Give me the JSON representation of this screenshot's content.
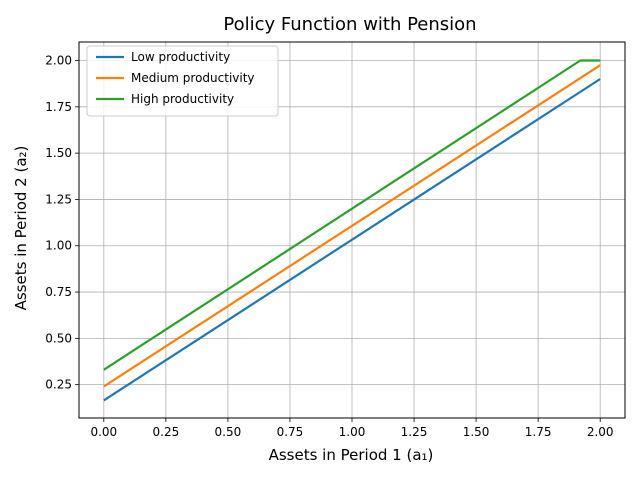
{
  "chart_data": {
    "type": "line",
    "title": "Policy Function with Pension",
    "xlabel": "Assets in Period 1 (a₁)",
    "ylabel": "Assets in Period 2 (a₂)",
    "xlim": [
      -0.1,
      2.1
    ],
    "ylim": [
      0.07,
      2.1
    ],
    "xticks": [
      0.0,
      0.25,
      0.5,
      0.75,
      1.0,
      1.25,
      1.5,
      1.75,
      2.0
    ],
    "xtick_labels": [
      "0.00",
      "0.25",
      "0.50",
      "0.75",
      "1.00",
      "1.25",
      "1.50",
      "1.75",
      "2.00"
    ],
    "yticks": [
      0.25,
      0.5,
      0.75,
      1.0,
      1.25,
      1.5,
      1.75,
      2.0
    ],
    "ytick_labels": [
      "0.25",
      "0.50",
      "0.75",
      "1.00",
      "1.25",
      "1.50",
      "1.75",
      "2.00"
    ],
    "grid": true,
    "legend_position": "top-left",
    "series": [
      {
        "name": "Low productivity",
        "color": "#1f77b4",
        "x": [
          0.0,
          2.0
        ],
        "y": [
          0.165,
          1.9
        ]
      },
      {
        "name": "Medium productivity",
        "color": "#ff7f0e",
        "x": [
          0.0,
          2.0
        ],
        "y": [
          0.24,
          1.975
        ]
      },
      {
        "name": "High productivity",
        "color": "#2ca02c",
        "x": [
          0.0,
          1.92,
          2.0
        ],
        "y": [
          0.33,
          2.0,
          2.0
        ]
      }
    ]
  }
}
